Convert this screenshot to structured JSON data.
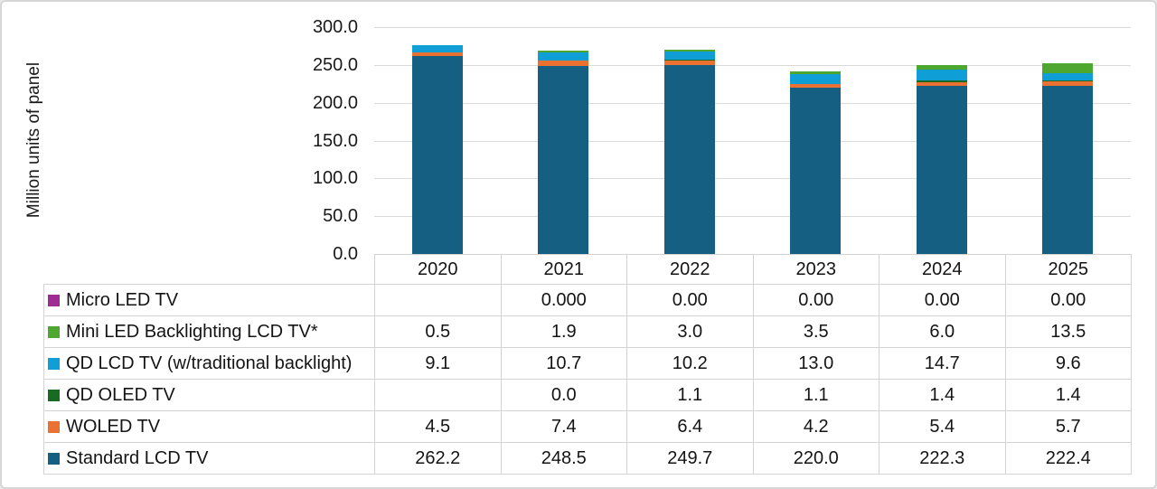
{
  "chart_data": {
    "type": "bar",
    "stacked": true,
    "title": "",
    "ylabel": "Million units of panel",
    "xlabel": "",
    "ylim": [
      0,
      300
    ],
    "grid": true,
    "legend_position": "table-left-column",
    "y_ticks": [
      {
        "value": 300,
        "label": "300.0"
      },
      {
        "value": 250,
        "label": "250.0"
      },
      {
        "value": 200,
        "label": "200.0"
      },
      {
        "value": 150,
        "label": "150.0"
      },
      {
        "value": 100,
        "label": "100.0"
      },
      {
        "value": 50,
        "label": "50.0"
      },
      {
        "value": 0,
        "label": "0.0"
      }
    ],
    "categories": [
      "2020",
      "2021",
      "2022",
      "2023",
      "2024",
      "2025"
    ],
    "series": [
      {
        "name": "Micro LED TV",
        "color": "#A02B93",
        "values": [
          null,
          0.0,
          0.0,
          0.0,
          0.0,
          0.0
        ],
        "display": [
          "",
          "0.000",
          "0.00",
          "0.00",
          "0.00",
          "0.00"
        ]
      },
      {
        "name": "Mini LED Backlighting LCD TV*",
        "color": "#4EA72E",
        "values": [
          0.5,
          1.9,
          3.0,
          3.5,
          6.0,
          13.5
        ],
        "display": [
          "0.5",
          "1.9",
          "3.0",
          "3.5",
          "6.0",
          "13.5"
        ]
      },
      {
        "name": "QD LCD TV (w/traditional backlight)",
        "color": "#0F9ED5",
        "values": [
          9.1,
          10.7,
          10.2,
          13.0,
          14.7,
          9.6
        ],
        "display": [
          "9.1",
          "10.7",
          "10.2",
          "13.0",
          "14.7",
          "9.6"
        ]
      },
      {
        "name": "QD OLED TV",
        "color": "#196B24",
        "values": [
          null,
          0.0,
          1.1,
          1.1,
          1.4,
          1.4
        ],
        "display": [
          "",
          "0.0",
          "1.1",
          "1.1",
          "1.4",
          "1.4"
        ]
      },
      {
        "name": "WOLED TV",
        "color": "#E97132",
        "values": [
          4.5,
          7.4,
          6.4,
          4.2,
          5.4,
          5.7
        ],
        "display": [
          "4.5",
          "7.4",
          "6.4",
          "4.2",
          "5.4",
          "5.7"
        ]
      },
      {
        "name": "Standard LCD TV",
        "color": "#156082",
        "values": [
          262.2,
          248.5,
          249.7,
          220.0,
          222.3,
          222.4
        ],
        "display": [
          "262.2",
          "248.5",
          "249.7",
          "220.0",
          "222.3",
          "222.4"
        ]
      }
    ]
  },
  "style_colors": {
    "gridline": "#d9d9d9",
    "table_border": "#d3d3d3",
    "text": "#141414"
  }
}
